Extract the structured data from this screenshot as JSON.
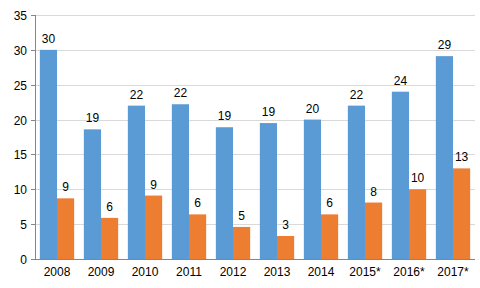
{
  "chart_data": {
    "type": "bar",
    "categories": [
      "2008",
      "2009",
      "2010",
      "2011",
      "2012",
      "2013",
      "2014",
      "2015*",
      "2016*",
      "2017*"
    ],
    "series": [
      {
        "color": "#5b9bd5",
        "values": [
          30.0,
          18.6,
          22.0,
          22.2,
          18.9,
          19.5,
          20.0,
          22.0,
          24.0,
          29.1
        ],
        "value_labels": [
          "30",
          "19",
          "22",
          "22",
          "19",
          "19",
          "20",
          "22",
          "24",
          "29"
        ]
      },
      {
        "color": "#ed7d31",
        "values": [
          8.7,
          5.9,
          9.1,
          6.4,
          4.6,
          3.3,
          6.4,
          8.1,
          10.0,
          13.0
        ],
        "value_labels": [
          "9",
          "6",
          "9",
          "6",
          "5",
          "3",
          "6",
          "8",
          "10",
          "13"
        ]
      }
    ],
    "ylim": [
      0,
      35
    ],
    "yticks": [
      0,
      5,
      10,
      15,
      20,
      25,
      30,
      35
    ],
    "grid": true,
    "data_labels": true
  }
}
